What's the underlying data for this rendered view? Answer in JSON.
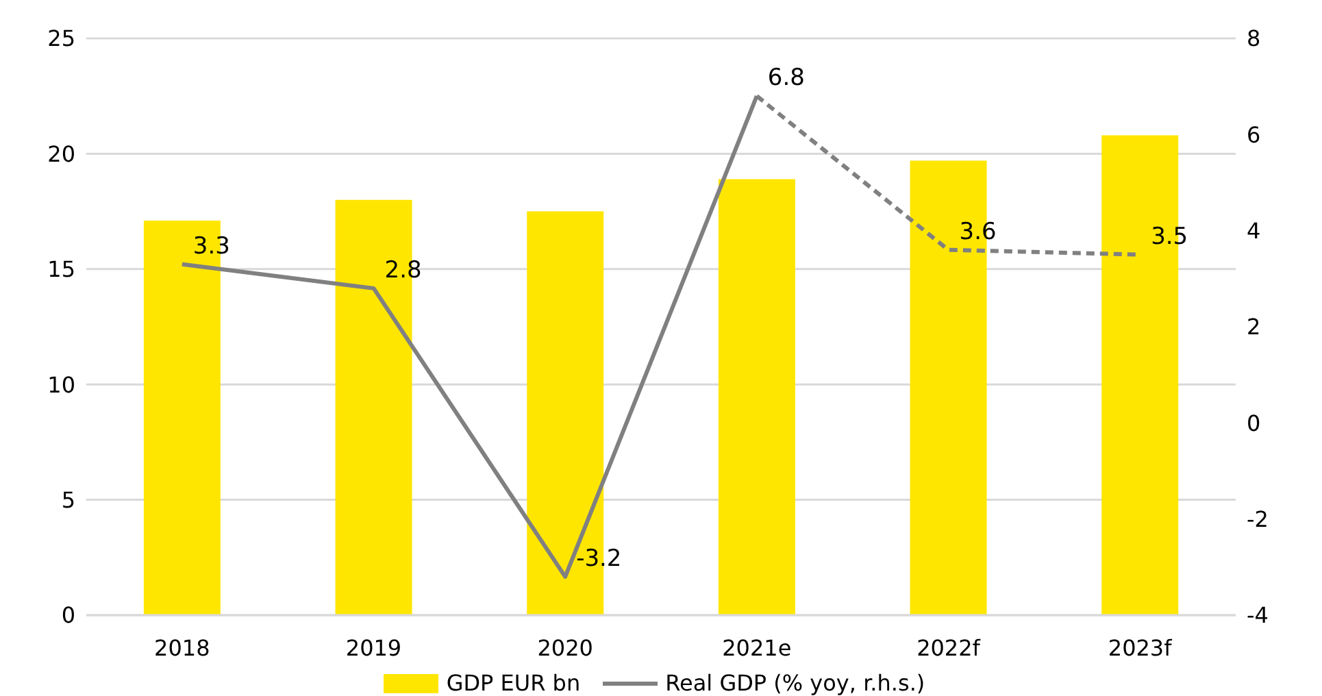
{
  "chart_data": {
    "type": "bar",
    "categories": [
      "2018",
      "2019",
      "2020",
      "2021e",
      "2022f",
      "2023f"
    ],
    "series": [
      {
        "name": "GDP EUR bn",
        "color": "#ffe600",
        "values": [
          17.1,
          18.0,
          17.5,
          18.9,
          19.7,
          20.8
        ]
      },
      {
        "name": "Real GDP (% yoy, r.h.s.)",
        "type": "line",
        "axis": "y2",
        "color": "#808080",
        "line_style": "solid",
        "values": [
          3.3,
          2.8,
          -3.2,
          6.8,
          null,
          null
        ],
        "value_labels": [
          "3.3",
          "2.8",
          "-3.2",
          "6.8",
          null,
          null
        ]
      },
      {
        "type": "line",
        "axis": "y2",
        "color": "#808080",
        "line_style": "dashed",
        "values": [
          null,
          null,
          null,
          6.8,
          3.6,
          3.5
        ],
        "value_labels": [
          null,
          null,
          null,
          null,
          "3.6",
          "3.5"
        ]
      }
    ],
    "ylim": [
      0,
      25
    ],
    "yticks": [
      0,
      5,
      10,
      15,
      20,
      25
    ],
    "y2lim": [
      -4,
      8
    ],
    "y2ticks": [
      -4,
      -2,
      0,
      2,
      4,
      6,
      8
    ],
    "grid": "y",
    "legend": "bottom",
    "marker": "none"
  }
}
